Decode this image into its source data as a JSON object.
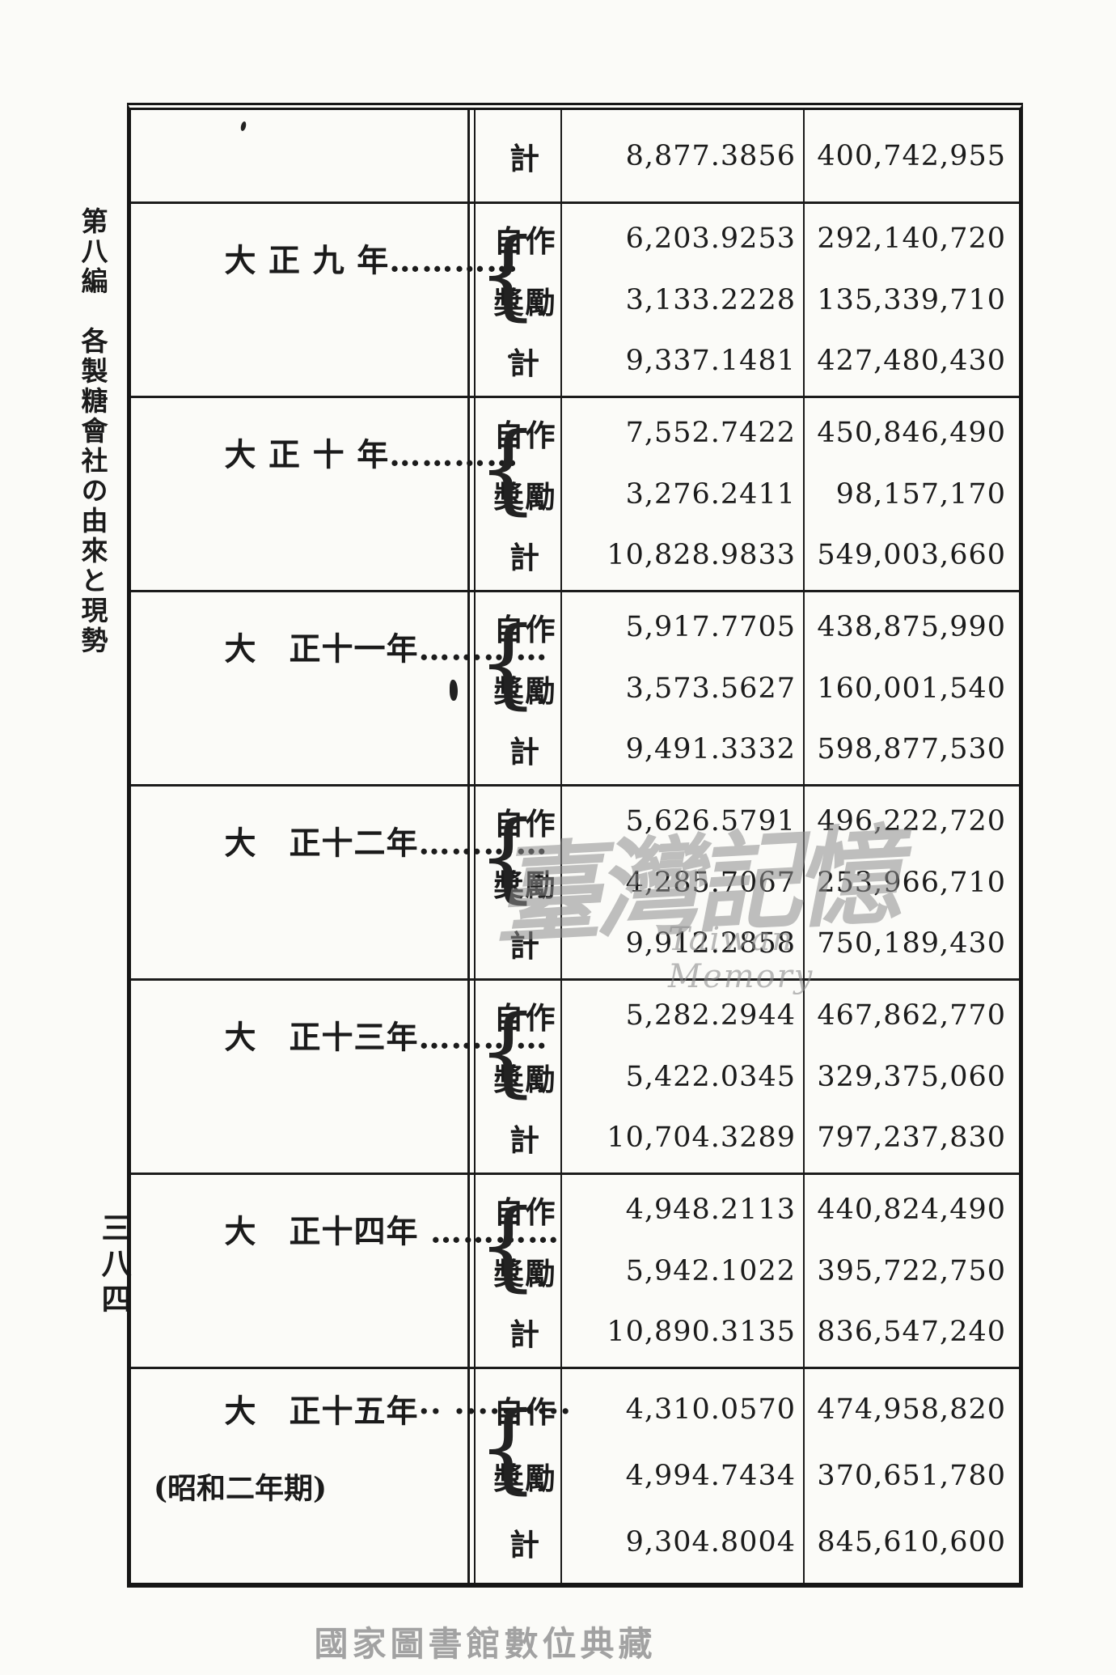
{
  "page": {
    "side_title": "第八編　各製糖會社の由來と現勢",
    "page_number_vertical": "三八四",
    "footer_caption": "國家圖書館數位典藏",
    "watermark_cjk": "臺灣記憶",
    "watermark_latin": "Taiwan Memory"
  },
  "colors": {
    "ink": "#1b1b1b",
    "watermark_gray": "#8d8d8d",
    "footer_gray": "#a2a2a2",
    "paper": "#fbfbf8"
  },
  "table": {
    "brace": "{",
    "category_labels": {
      "self_cultivated": "自作",
      "incentive": "獎勵",
      "total": "計"
    },
    "sections": [
      {
        "year": "",
        "rows": [
          {
            "cat": "計",
            "v1": "8,877.3856",
            "v2": "400,742,955"
          }
        ]
      },
      {
        "year": "大 正 九 年…………",
        "rows": [
          {
            "cat": "自作",
            "v1": "6,203.9253",
            "v2": "292,140,720"
          },
          {
            "cat": "獎勵",
            "v1": "3,133.2228",
            "v2": "135,339,710"
          },
          {
            "cat": "計",
            "v1": "9,337.1481",
            "v2": "427,480,430"
          }
        ]
      },
      {
        "year": "大 正 十 年…………",
        "rows": [
          {
            "cat": "自作",
            "v1": "7,552.7422",
            "v2": "450,846,490"
          },
          {
            "cat": "獎勵",
            "v1": "3,276.2411",
            "v2": "98,157,170"
          },
          {
            "cat": "計",
            "v1": "10,828.9833",
            "v2": "549,003,660"
          }
        ]
      },
      {
        "year": "大　正十一年…………",
        "rows": [
          {
            "cat": "自作",
            "v1": "5,917.7705",
            "v2": "438,875,990"
          },
          {
            "cat": "獎勵",
            "v1": "3,573.5627",
            "v2": "160,001,540"
          },
          {
            "cat": "計",
            "v1": "9,491.3332",
            "v2": "598,877,530"
          }
        ]
      },
      {
        "year": "大　正十二年…………",
        "rows": [
          {
            "cat": "自作",
            "v1": "5,626.5791",
            "v2": "496,222,720"
          },
          {
            "cat": "獎勵",
            "v1": "4,285.7067",
            "v2": "253,966,710"
          },
          {
            "cat": "計",
            "v1": "9,912.2858",
            "v2": "750,189,430"
          }
        ]
      },
      {
        "year": "大　正十三年…………",
        "rows": [
          {
            "cat": "自作",
            "v1": "5,282.2944",
            "v2": "467,862,770"
          },
          {
            "cat": "獎勵",
            "v1": "5,422.0345",
            "v2": "329,375,060"
          },
          {
            "cat": "計",
            "v1": "10,704.3289",
            "v2": "797,237,830"
          }
        ]
      },
      {
        "year": "大　正十四年 …………",
        "rows": [
          {
            "cat": "自作",
            "v1": "4,948.2113",
            "v2": "440,824,490"
          },
          {
            "cat": "獎勵",
            "v1": "5,942.1022",
            "v2": "395,722,750"
          },
          {
            "cat": "計",
            "v1": "10,890.3135",
            "v2": "836,547,240"
          }
        ]
      },
      {
        "year": "大　正十五年·· ····· ····",
        "year2": "(昭和二年期)",
        "rows": [
          {
            "cat": "自作",
            "v1": "4,310.0570",
            "v2": "474,958,820"
          },
          {
            "cat": "獎勵",
            "v1": "4,994.7434",
            "v2": "370,651,780"
          },
          {
            "cat": "計",
            "v1": "9,304.8004",
            "v2": "845,610,600"
          }
        ]
      }
    ]
  }
}
